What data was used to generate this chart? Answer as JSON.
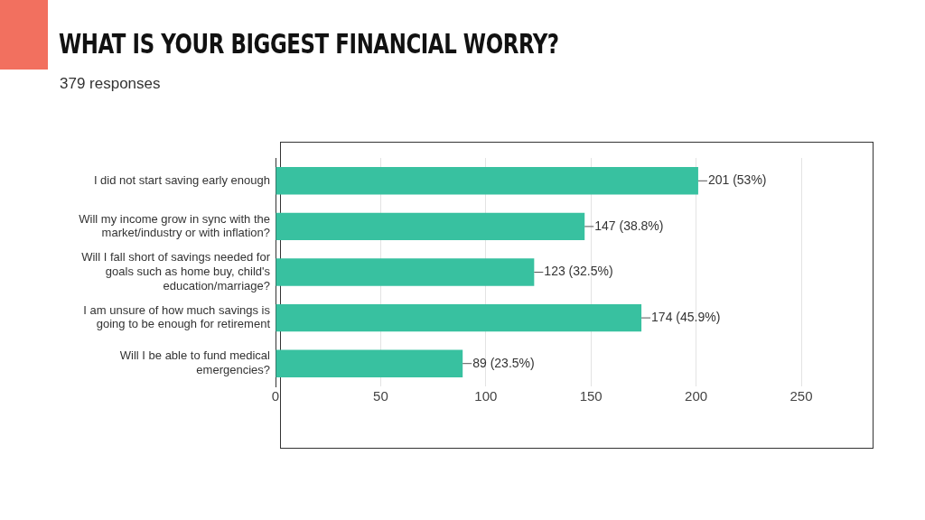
{
  "chart_data": {
    "type": "bar",
    "orientation": "horizontal",
    "title": "WHAT IS YOUR BIGGEST FINANCIAL WORRY?",
    "subtitle": "379 responses",
    "categories": [
      "I did not start saving early enough",
      "Will my income grow in sync with the market/industry or with inflation?",
      "Will I fall short of savings needed for goals such as home buy, child's education/marriage?",
      "I am unsure of how much savings is going to be enough for retirement",
      "Will I be able to fund medical emergencies?"
    ],
    "values": [
      201,
      147,
      123,
      174,
      89
    ],
    "value_labels": [
      "201 (53%)",
      "147 (38.8%)",
      "123 (32.5%)",
      "174 (45.9%)",
      "89 (23.5%)"
    ],
    "color": "#38c1a0",
    "xlim": [
      0,
      250
    ],
    "xticks": [
      0,
      50,
      100,
      150,
      200,
      250
    ],
    "grid": "x",
    "legend": false
  }
}
